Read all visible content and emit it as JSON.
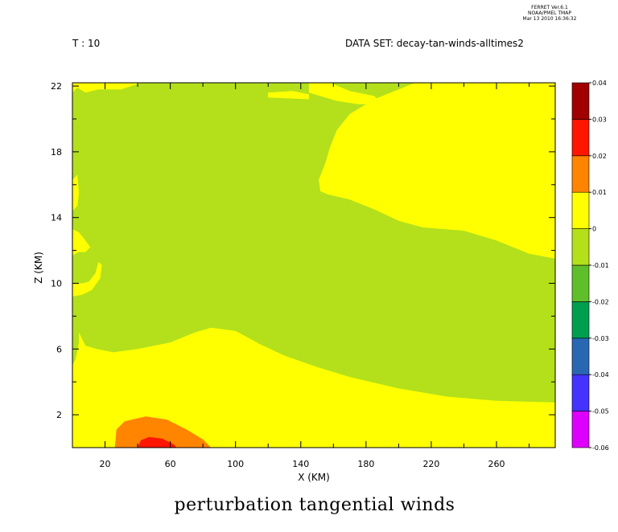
{
  "header": {
    "stamp_line1": "FERRET  Ver.6.1",
    "stamp_line2": "NOAA/PMEL TMAP",
    "stamp_line3": "Mar 13 2010 16:36:32",
    "time_label": "T : 10",
    "dataset_label": "DATA SET: decay-tan-winds-alltimes2",
    "bottom_title": "perturbation tangential winds"
  },
  "chart_data": {
    "type": "heatmap",
    "subtype": "filled-contour",
    "xlabel": "X (KM)",
    "ylabel": "Z (KM)",
    "xlim": [
      0,
      296
    ],
    "ylim": [
      0,
      22.2
    ],
    "x_ticks": [
      20,
      60,
      100,
      140,
      180,
      220,
      260
    ],
    "y_ticks": [
      2,
      6,
      10,
      14,
      18,
      22
    ],
    "colorbar": {
      "levels": [
        -0.06,
        -0.05,
        -0.04,
        -0.03,
        -0.02,
        -0.01,
        0,
        0.01,
        0.02,
        0.03,
        0.04
      ],
      "labels": [
        "-0.06",
        "-0.05",
        "-0.04",
        "-0.03",
        "-0.02",
        "-0.01",
        "0",
        "0.01",
        "0.02",
        "0.03",
        "0.04"
      ],
      "colors": [
        "#dd00ff",
        "#4433ff",
        "#2a67b2",
        "#009e4f",
        "#5fbf2a",
        "#b3e01b",
        "#ffff00",
        "#ff8400",
        "#ff1600",
        "#a00000"
      ]
    },
    "regions": [
      {
        "level": "0 to 0.01",
        "color": "#ffff00",
        "description": "background, surface layer below ~4-6 km and upper right above ~16 km"
      },
      {
        "level": "-0.01 to 0",
        "color": "#b3e01b",
        "description": "large mid-level region from ~6 km to ~22 km"
      },
      {
        "level": "0.01 to 0.02",
        "color": "#ff8400",
        "polygon": [
          [
            26,
            0
          ],
          [
            27,
            1.1
          ],
          [
            32,
            1.6
          ],
          [
            45,
            1.9
          ],
          [
            58,
            1.7
          ],
          [
            70,
            1.1
          ],
          [
            80,
            0.5
          ],
          [
            85,
            0
          ]
        ]
      },
      {
        "level": "0.02 to 0.03",
        "color": "#ff1600",
        "polygon": [
          [
            40,
            0
          ],
          [
            42,
            0.45
          ],
          [
            47,
            0.65
          ],
          [
            55,
            0.55
          ],
          [
            62,
            0.2
          ],
          [
            64,
            0
          ]
        ]
      }
    ],
    "green_region_boundary": {
      "lower": [
        [
          0,
          5
        ],
        [
          2,
          5.4
        ],
        [
          4,
          6.4
        ],
        [
          4,
          7
        ],
        [
          8,
          6.2
        ],
        [
          15,
          6
        ],
        [
          25,
          5.8
        ],
        [
          40,
          6
        ],
        [
          60,
          6.4
        ],
        [
          75,
          7
        ],
        [
          85,
          7.3
        ],
        [
          100,
          7.1
        ],
        [
          115,
          6.3
        ],
        [
          130,
          5.6
        ],
        [
          150,
          4.9
        ],
        [
          170,
          4.3
        ],
        [
          200,
          3.6
        ],
        [
          230,
          3.1
        ],
        [
          260,
          2.85
        ],
        [
          296,
          2.75
        ]
      ],
      "upper": [
        [
          296,
          11.5
        ],
        [
          280,
          11.8
        ],
        [
          260,
          12.6
        ],
        [
          240,
          13.2
        ],
        [
          215,
          13.4
        ],
        [
          200,
          13.8
        ],
        [
          185,
          14.5
        ],
        [
          170,
          15.1
        ],
        [
          157,
          15.4
        ],
        [
          152,
          15.6
        ],
        [
          151,
          16.3
        ],
        [
          155,
          17.3
        ],
        [
          158,
          18.3
        ],
        [
          162,
          19.3
        ],
        [
          170,
          20.3
        ],
        [
          185,
          21.2
        ],
        [
          200,
          21.8
        ],
        [
          210,
          22.2
        ]
      ]
    }
  }
}
